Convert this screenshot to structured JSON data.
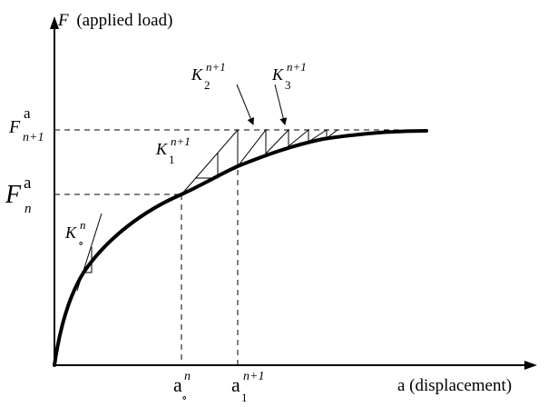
{
  "diagram": {
    "axes": {
      "y_label_symbol": "F",
      "y_label_text": "(applied load)",
      "x_label": "a (displacement)"
    },
    "y_ticks": {
      "upper": {
        "base": "F",
        "sup": "a",
        "sub": "n+1"
      },
      "lower": {
        "base": "F",
        "sup": "a",
        "sub": "n"
      }
    },
    "x_ticks": {
      "first": {
        "base": "a",
        "sup": "n",
        "sub": "∘"
      },
      "second": {
        "base": "a",
        "sup": "n+1",
        "sub": "1"
      }
    },
    "stiffness_labels": {
      "k0": {
        "base": "K",
        "sub": "∘",
        "sup": "n"
      },
      "k1": {
        "base": "K",
        "sub": "1",
        "sup": "n+1"
      },
      "k2": {
        "base": "K",
        "sub": "2",
        "sup": "n+1"
      },
      "k3": {
        "base": "K",
        "sub": "3",
        "sup": "n+1"
      }
    },
    "colors": {
      "ink": "#000000",
      "background": "#ffffff"
    }
  }
}
